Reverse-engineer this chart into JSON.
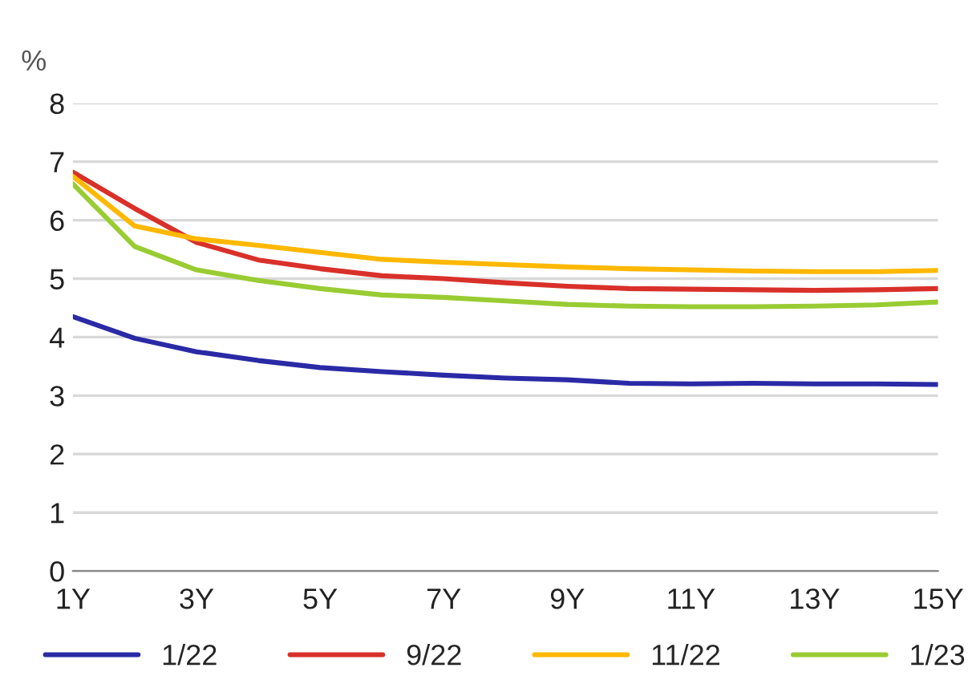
{
  "chart_data": {
    "type": "line",
    "ylabel": "%",
    "x": [
      1,
      2,
      3,
      4,
      5,
      6,
      7,
      8,
      9,
      10,
      11,
      12,
      13,
      14,
      15
    ],
    "xlim": [
      1,
      15
    ],
    "xticks": [
      {
        "value": 1,
        "label": "1Y"
      },
      {
        "value": 3,
        "label": "3Y"
      },
      {
        "value": 5,
        "label": "5Y"
      },
      {
        "value": 7,
        "label": "7Y"
      },
      {
        "value": 9,
        "label": "9Y"
      },
      {
        "value": 11,
        "label": "11Y"
      },
      {
        "value": 13,
        "label": "13Y"
      },
      {
        "value": 15,
        "label": "15Y"
      }
    ],
    "ylim": [
      0,
      8
    ],
    "yticks": [
      0,
      1,
      2,
      3,
      4,
      5,
      6,
      7,
      8
    ],
    "grid": "y",
    "legend": "bottom",
    "marker": "none",
    "line_style": "solid",
    "series": [
      {
        "name": "1/22",
        "color": "#2a2aa6",
        "values": [
          4.35,
          3.98,
          3.75,
          3.6,
          3.48,
          3.41,
          3.35,
          3.3,
          3.27,
          3.21,
          3.2,
          3.21,
          3.2,
          3.2,
          3.19
        ]
      },
      {
        "name": "9/22",
        "color": "#d9302a",
        "values": [
          6.82,
          6.2,
          5.62,
          5.32,
          5.17,
          5.05,
          5.0,
          4.93,
          4.87,
          4.83,
          4.82,
          4.81,
          4.8,
          4.81,
          4.83
        ]
      },
      {
        "name": "11/22",
        "color": "#ffb800",
        "values": [
          6.75,
          5.9,
          5.68,
          5.57,
          5.45,
          5.33,
          5.28,
          5.24,
          5.2,
          5.17,
          5.15,
          5.13,
          5.12,
          5.12,
          5.14
        ]
      },
      {
        "name": "1/23",
        "color": "#99cc33",
        "values": [
          6.62,
          5.55,
          5.15,
          4.97,
          4.83,
          4.72,
          4.68,
          4.62,
          4.56,
          4.53,
          4.52,
          4.52,
          4.53,
          4.55,
          4.6
        ]
      }
    ]
  }
}
